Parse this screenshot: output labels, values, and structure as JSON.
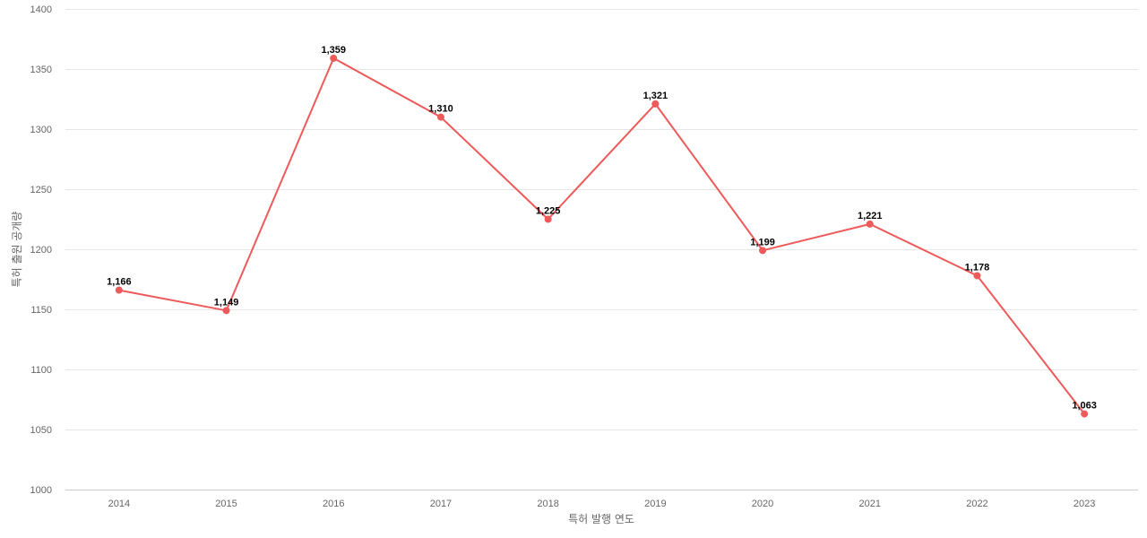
{
  "chart_data": {
    "type": "line",
    "title": "",
    "xlabel": "특허 발행 연도",
    "ylabel": "특허 출원 공개량",
    "categories": [
      "2014",
      "2015",
      "2016",
      "2017",
      "2018",
      "2019",
      "2020",
      "2021",
      "2022",
      "2023"
    ],
    "series": [
      {
        "values": [
          1166,
          1149,
          1359,
          1310,
          1225,
          1321,
          1199,
          1221,
          1178,
          1063
        ],
        "labels": [
          "1,166",
          "1,149",
          "1,359",
          "1,310",
          "1,225",
          "1,321",
          "1,199",
          "1,221",
          "1,178",
          "1,063"
        ],
        "color": "#ee5a5a"
      }
    ],
    "ylim": [
      1000,
      1400
    ],
    "yticks": [
      1000,
      1050,
      1100,
      1150,
      1200,
      1250,
      1300,
      1350,
      1400
    ],
    "grid": true,
    "legend": "none"
  }
}
